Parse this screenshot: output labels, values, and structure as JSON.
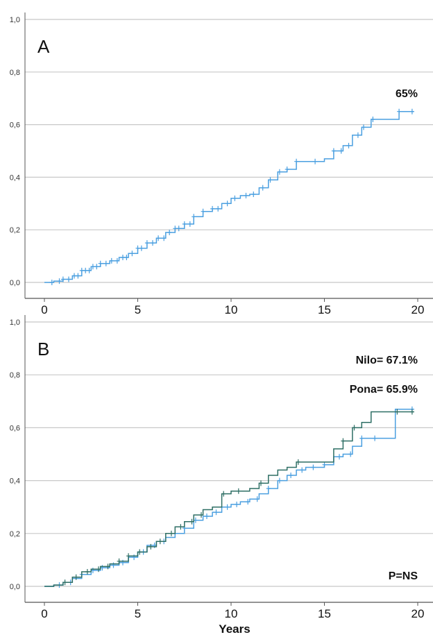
{
  "colors": {
    "grid": "#c8c8c8",
    "axis": "#555555",
    "series_light_blue": "#4a9fe0",
    "series_dark_teal": "#2d6e64"
  },
  "chart_data": [
    {
      "type": "line",
      "panel_label": "A",
      "annotations": [
        "65%"
      ],
      "xlabel": "",
      "ylabel": "",
      "xlim": [
        -1,
        21
      ],
      "ylim": [
        0,
        1.0
      ],
      "x_ticks": [
        0,
        5,
        10,
        15,
        20
      ],
      "x_tick_labels": [
        "0",
        "5",
        "10",
        "15",
        "20"
      ],
      "y_ticks": [
        0,
        0.2,
        0.4,
        0.6,
        0.8,
        1.0
      ],
      "y_tick_labels": [
        "0,0",
        "0,2",
        "0,4",
        "0,6",
        "0,8",
        "1,0"
      ],
      "grid": "horizontal",
      "series": [
        {
          "color": "#4a9fe0",
          "step": [
            [
              0,
              0
            ],
            [
              0.5,
              0.005
            ],
            [
              1,
              0.012
            ],
            [
              1.5,
              0.025
            ],
            [
              2,
              0.045
            ],
            [
              2.5,
              0.06
            ],
            [
              3,
              0.072
            ],
            [
              3.5,
              0.082
            ],
            [
              4,
              0.095
            ],
            [
              4.5,
              0.11
            ],
            [
              5,
              0.13
            ],
            [
              5.5,
              0.15
            ],
            [
              6,
              0.168
            ],
            [
              6.5,
              0.19
            ],
            [
              7,
              0.205
            ],
            [
              7.5,
              0.222
            ],
            [
              8,
              0.25
            ],
            [
              8.5,
              0.27
            ],
            [
              9,
              0.28
            ],
            [
              9.5,
              0.3
            ],
            [
              10,
              0.32
            ],
            [
              10.5,
              0.33
            ],
            [
              11,
              0.335
            ],
            [
              11.5,
              0.36
            ],
            [
              12,
              0.39
            ],
            [
              12.5,
              0.42
            ],
            [
              13,
              0.43
            ],
            [
              13.5,
              0.46
            ],
            [
              14,
              0.46
            ],
            [
              14.5,
              0.46
            ],
            [
              15,
              0.47
            ],
            [
              15.5,
              0.5
            ],
            [
              16,
              0.52
            ],
            [
              16.5,
              0.56
            ],
            [
              17,
              0.59
            ],
            [
              17.5,
              0.62
            ],
            [
              18,
              0.62
            ],
            [
              18.5,
              0.62
            ],
            [
              19,
              0.65
            ],
            [
              19.8,
              0.65
            ]
          ],
          "censored_x": [
            0.4,
            0.8,
            1.0,
            1.3,
            1.6,
            1.8,
            2.0,
            2.2,
            2.4,
            2.6,
            2.8,
            3.0,
            3.3,
            3.6,
            3.9,
            4.2,
            4.4,
            4.7,
            5.0,
            5.2,
            5.5,
            5.8,
            6.1,
            6.4,
            6.7,
            7.0,
            7.2,
            7.5,
            7.8,
            8.0,
            8.5,
            9.0,
            9.3,
            9.8,
            10.2,
            10.8,
            11.2,
            11.7,
            12.1,
            12.6,
            13.0,
            13.5,
            14.5,
            15.5,
            15.9,
            16.3,
            16.8,
            17.1,
            17.6,
            19.0,
            19.7
          ]
        }
      ]
    },
    {
      "type": "line",
      "panel_label": "B",
      "annotations": [
        "Nilo= 67.1%",
        "Pona= 65.9%",
        "P=NS"
      ],
      "xlabel": "Years",
      "ylabel": "",
      "xlim": [
        -1,
        21
      ],
      "ylim": [
        0,
        1.0
      ],
      "x_ticks": [
        0,
        5,
        10,
        15,
        20
      ],
      "x_tick_labels": [
        "0",
        "5",
        "10",
        "15",
        "20"
      ],
      "y_ticks": [
        0,
        0.2,
        0.4,
        0.6,
        0.8,
        1.0
      ],
      "y_tick_labels": [
        "0,0",
        "0,2",
        "0,4",
        "0,6",
        "0,8",
        "1,0"
      ],
      "grid": "horizontal",
      "series": [
        {
          "color": "#4a9fe0",
          "step": [
            [
              0,
              0
            ],
            [
              0.5,
              0.005
            ],
            [
              1,
              0.015
            ],
            [
              1.5,
              0.03
            ],
            [
              2,
              0.045
            ],
            [
              2.5,
              0.06
            ],
            [
              3,
              0.07
            ],
            [
              3.5,
              0.08
            ],
            [
              4,
              0.09
            ],
            [
              4.5,
              0.11
            ],
            [
              5,
              0.13
            ],
            [
              5.5,
              0.155
            ],
            [
              6,
              0.17
            ],
            [
              6.5,
              0.185
            ],
            [
              7,
              0.2
            ],
            [
              7.5,
              0.22
            ],
            [
              8,
              0.25
            ],
            [
              8.5,
              0.265
            ],
            [
              9,
              0.28
            ],
            [
              9.5,
              0.3
            ],
            [
              10,
              0.31
            ],
            [
              10.5,
              0.32
            ],
            [
              11,
              0.33
            ],
            [
              11.5,
              0.35
            ],
            [
              12,
              0.37
            ],
            [
              12.5,
              0.4
            ],
            [
              13,
              0.42
            ],
            [
              13.5,
              0.44
            ],
            [
              14,
              0.45
            ],
            [
              14.5,
              0.45
            ],
            [
              15,
              0.46
            ],
            [
              15.5,
              0.49
            ],
            [
              16,
              0.5
            ],
            [
              16.5,
              0.53
            ],
            [
              17,
              0.56
            ],
            [
              17.5,
              0.56
            ],
            [
              18,
              0.56
            ],
            [
              18.5,
              0.56
            ],
            [
              18.8,
              0.67
            ],
            [
              19.8,
              0.67
            ]
          ],
          "censored_x": [
            0.8,
            1.4,
            2.0,
            2.6,
            3.1,
            3.7,
            4.2,
            4.8,
            5.3,
            5.9,
            6.4,
            7.0,
            7.5,
            8.1,
            8.7,
            9.2,
            9.8,
            10.3,
            10.9,
            11.4,
            12.0,
            12.6,
            13.2,
            13.8,
            14.4,
            15.0,
            15.8,
            16.4,
            17.0,
            17.7,
            19.7
          ]
        },
        {
          "color": "#2d6e64",
          "step": [
            [
              0,
              0
            ],
            [
              0.5,
              0.005
            ],
            [
              1,
              0.015
            ],
            [
              1.5,
              0.035
            ],
            [
              2,
              0.055
            ],
            [
              2.5,
              0.065
            ],
            [
              3,
              0.075
            ],
            [
              3.5,
              0.085
            ],
            [
              4,
              0.095
            ],
            [
              4.5,
              0.115
            ],
            [
              5,
              0.13
            ],
            [
              5.5,
              0.15
            ],
            [
              6,
              0.17
            ],
            [
              6.5,
              0.2
            ],
            [
              7,
              0.225
            ],
            [
              7.5,
              0.245
            ],
            [
              8,
              0.27
            ],
            [
              8.5,
              0.29
            ],
            [
              9,
              0.3
            ],
            [
              9.5,
              0.35
            ],
            [
              10,
              0.36
            ],
            [
              10.5,
              0.36
            ],
            [
              11,
              0.37
            ],
            [
              11.5,
              0.39
            ],
            [
              12,
              0.42
            ],
            [
              12.5,
              0.44
            ],
            [
              13,
              0.45
            ],
            [
              13.5,
              0.47
            ],
            [
              14,
              0.47
            ],
            [
              14.5,
              0.47
            ],
            [
              15,
              0.47
            ],
            [
              15.5,
              0.52
            ],
            [
              16,
              0.55
            ],
            [
              16.5,
              0.6
            ],
            [
              17,
              0.62
            ],
            [
              17.5,
              0.66
            ],
            [
              18,
              0.66
            ],
            [
              18.5,
              0.66
            ],
            [
              19,
              0.66
            ],
            [
              19.8,
              0.66
            ]
          ],
          "censored_x": [
            1.1,
            1.7,
            2.3,
            2.9,
            3.4,
            4.0,
            4.5,
            5.1,
            5.7,
            6.2,
            6.8,
            7.3,
            7.9,
            8.4,
            9.6,
            10.4,
            11.6,
            13.6,
            16.0,
            16.6,
            18.9,
            19.7
          ]
        }
      ]
    }
  ]
}
